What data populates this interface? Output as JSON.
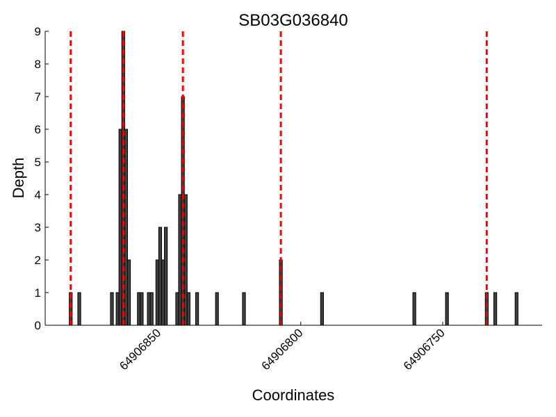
{
  "chart_data": {
    "type": "bar",
    "title": "SB03G036840",
    "xlabel": "Coordinates",
    "ylabel": "Depth",
    "x_reversed": true,
    "xlim": [
      64906890,
      64906715
    ],
    "ylim": [
      0,
      9
    ],
    "y_ticks": [
      0,
      1,
      2,
      3,
      4,
      5,
      6,
      7,
      8,
      9
    ],
    "x_ticks": [
      {
        "value": 64906850,
        "label": "64906850"
      },
      {
        "value": 64906800,
        "label": "64906800"
      },
      {
        "value": 64906750,
        "label": "64906750"
      }
    ],
    "bar_color": "#404040",
    "line_color": "#ff0000",
    "grid": false,
    "legend": "none",
    "bars": [
      {
        "x": 64906881,
        "y": 1
      },
      {
        "x": 64906878,
        "y": 1
      },
      {
        "x": 64906866.5,
        "y": 1
      },
      {
        "x": 64906864.5,
        "y": 1
      },
      {
        "x": 64906863.5,
        "y": 6
      },
      {
        "x": 64906862.5,
        "y": 9
      },
      {
        "x": 64906861.5,
        "y": 6
      },
      {
        "x": 64906860.5,
        "y": 2
      },
      {
        "x": 64906857,
        "y": 1
      },
      {
        "x": 64906856,
        "y": 1
      },
      {
        "x": 64906853.5,
        "y": 1
      },
      {
        "x": 64906852.5,
        "y": 1
      },
      {
        "x": 64906850.5,
        "y": 2
      },
      {
        "x": 64906849.5,
        "y": 3
      },
      {
        "x": 64906848.5,
        "y": 2
      },
      {
        "x": 64906847.5,
        "y": 3
      },
      {
        "x": 64906843.5,
        "y": 1
      },
      {
        "x": 64906842.5,
        "y": 4
      },
      {
        "x": 64906841.5,
        "y": 7
      },
      {
        "x": 64906840.5,
        "y": 4
      },
      {
        "x": 64906839.5,
        "y": 1
      },
      {
        "x": 64906836.5,
        "y": 1
      },
      {
        "x": 64906829.5,
        "y": 1
      },
      {
        "x": 64906820,
        "y": 1
      },
      {
        "x": 64906807,
        "y": 2
      },
      {
        "x": 64906792.5,
        "y": 1
      },
      {
        "x": 64906760,
        "y": 1
      },
      {
        "x": 64906748.5,
        "y": 1
      },
      {
        "x": 64906734.5,
        "y": 1
      },
      {
        "x": 64906731.5,
        "y": 1
      },
      {
        "x": 64906724,
        "y": 1
      }
    ],
    "vlines": [
      64906881,
      64906862.5,
      64906841.5,
      64906807,
      64906734.5
    ]
  }
}
